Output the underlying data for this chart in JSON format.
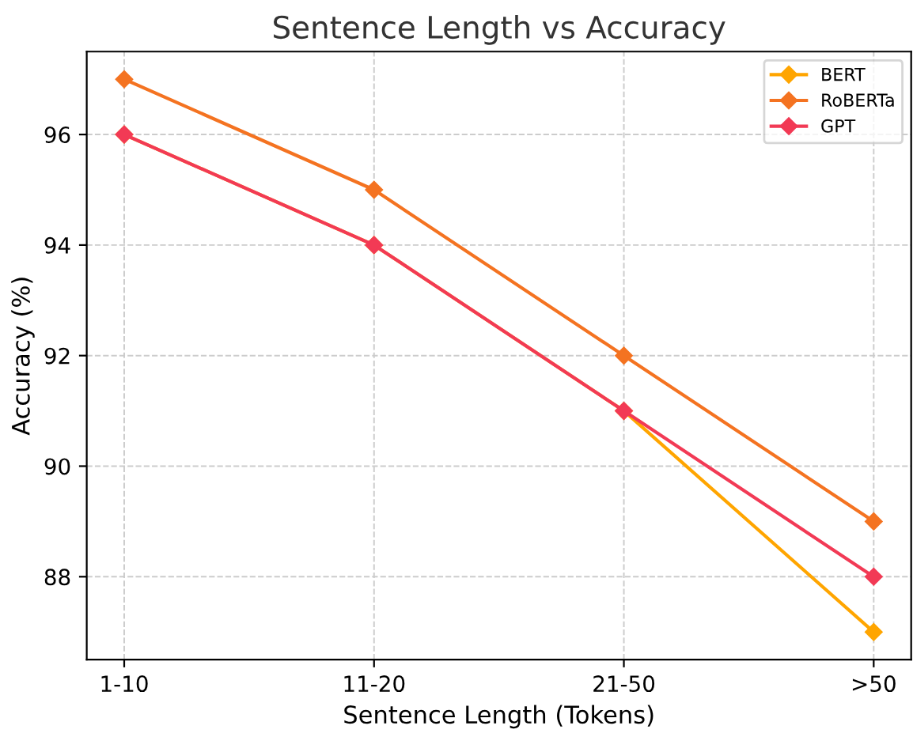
{
  "chart_data": {
    "type": "line",
    "title": "Sentence Length vs Accuracy",
    "xlabel": "Sentence Length (Tokens)",
    "ylabel": "Accuracy (%)",
    "categories": [
      "1-10",
      "11-20",
      "21-50",
      ">50"
    ],
    "series": [
      {
        "name": "BERT",
        "color": "#ffa500",
        "values": [
          96,
          94,
          91,
          87
        ]
      },
      {
        "name": "RoBERTa",
        "color": "#f47321",
        "values": [
          97,
          95,
          92,
          89
        ]
      },
      {
        "name": "GPT",
        "color": "#f23a55",
        "values": [
          96,
          94,
          91,
          88
        ]
      }
    ],
    "ylim": [
      86.5,
      97.5
    ],
    "yticks": [
      88,
      90,
      92,
      94,
      96
    ],
    "grid": true,
    "legend": "top right",
    "marker": "diamond",
    "line_style": "solid"
  }
}
